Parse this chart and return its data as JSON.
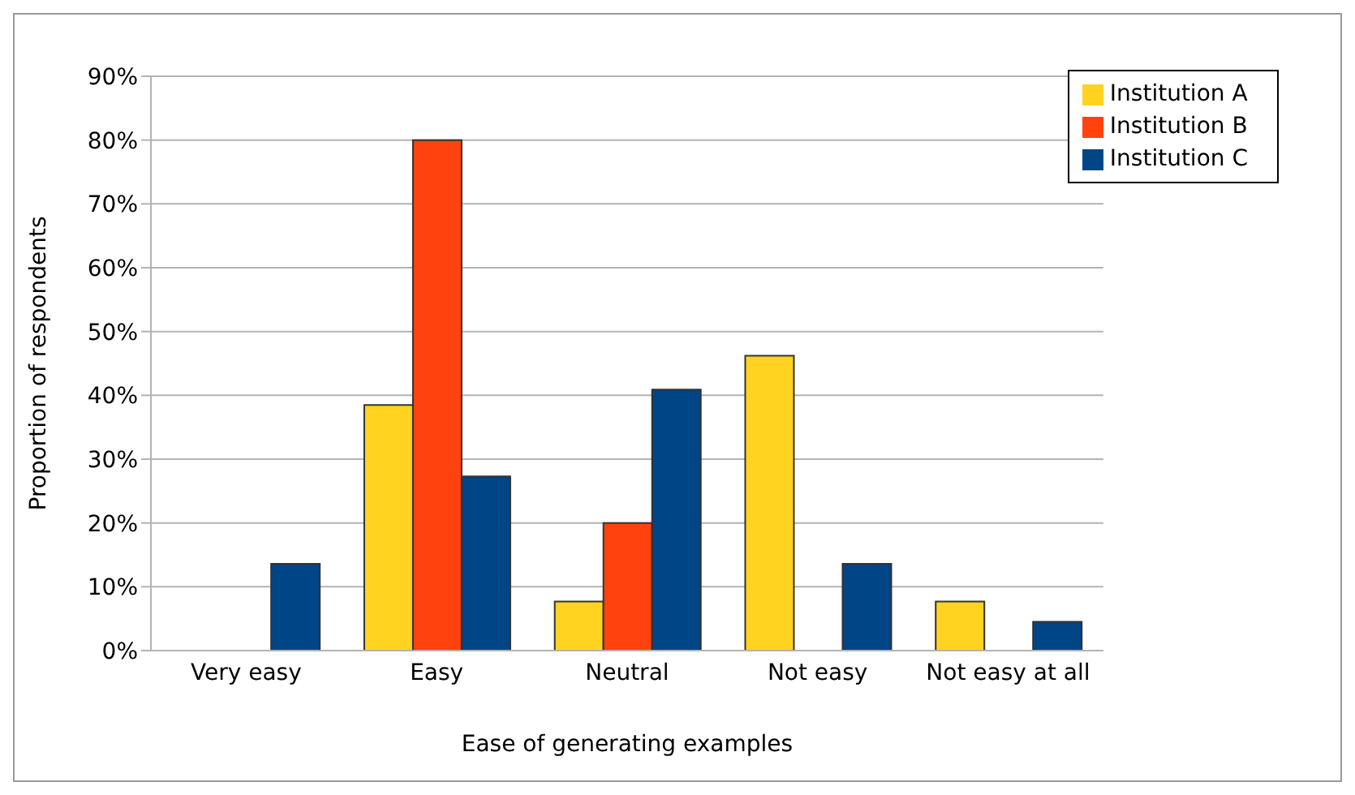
{
  "chart_data": {
    "type": "bar",
    "xlabel": "Ease of generating examples",
    "ylabel": "Proportion of respondents",
    "categories": [
      "Very easy",
      "Easy",
      "Neutral",
      "Not easy",
      "Not easy at all"
    ],
    "series": [
      {
        "name": "Institution A",
        "color": "#ffd320",
        "values": [
          0,
          38.5,
          7.7,
          46.2,
          7.7
        ]
      },
      {
        "name": "Institution B",
        "color": "#ff420e",
        "values": [
          0,
          80,
          20,
          0,
          0
        ]
      },
      {
        "name": "Institution C",
        "color": "#004586",
        "values": [
          13.6,
          27.3,
          40.9,
          13.6,
          4.5
        ]
      }
    ],
    "ylim": [
      0,
      90
    ],
    "yticks": [
      {
        "value": 0,
        "label": "0%"
      },
      {
        "value": 10,
        "label": "10%"
      },
      {
        "value": 20,
        "label": "20%"
      },
      {
        "value": 30,
        "label": "30%"
      },
      {
        "value": 40,
        "label": "40%"
      },
      {
        "value": 50,
        "label": "50%"
      },
      {
        "value": 60,
        "label": "60%"
      },
      {
        "value": 70,
        "label": "70%"
      },
      {
        "value": 80,
        "label": "80%"
      },
      {
        "value": 90,
        "label": "90%"
      }
    ],
    "grid": "y",
    "legend": "top right"
  }
}
